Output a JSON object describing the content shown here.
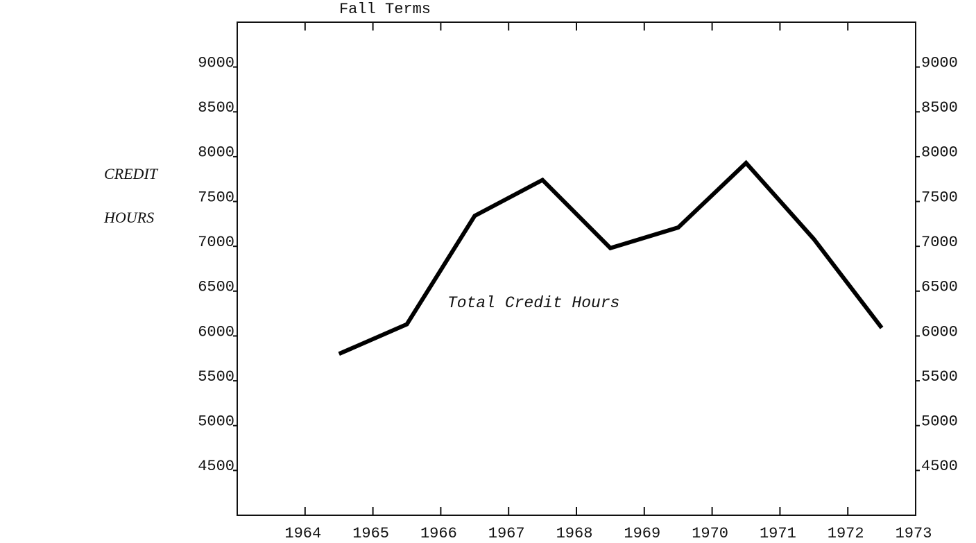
{
  "chart_data": {
    "type": "line",
    "title": "Fall Terms",
    "ylabel": [
      "CREDIT",
      "HOURS"
    ],
    "x": [
      1964.5,
      1965.5,
      1966.5,
      1967.5,
      1968.5,
      1969.5,
      1970.5,
      1971.5,
      1972.5
    ],
    "series": [
      {
        "name": "Total Credit Hours",
        "color": "#000000",
        "axis": "y",
        "values": [
          5800,
          6130,
          7340,
          7740,
          6980,
          7210,
          7930,
          7080,
          6090
        ]
      }
    ],
    "xlim": [
      1963,
      1973
    ],
    "xticks": [
      1964,
      1965,
      1966,
      1967,
      1968,
      1969,
      1970,
      1971,
      1972,
      1973
    ],
    "ylim": [
      4000,
      9500
    ],
    "yticks": [
      4500,
      5000,
      5500,
      6000,
      6500,
      7000,
      7500,
      8000,
      8500,
      9000
    ],
    "y2lim": [
      4000,
      9500
    ],
    "y2ticks": [
      4500,
      5000,
      5500,
      6000,
      6500,
      7000,
      7500,
      8000,
      8500,
      9000
    ],
    "grid": false
  }
}
